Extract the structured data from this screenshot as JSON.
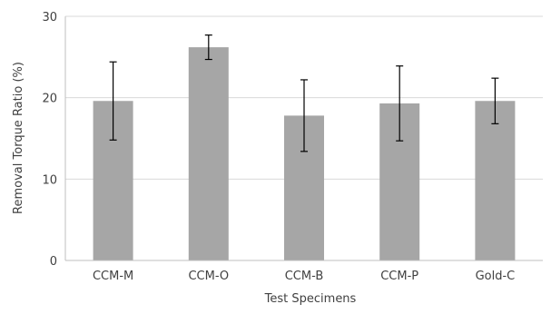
{
  "chart_data": {
    "type": "bar",
    "title": "",
    "xlabel": "Test Specimens",
    "ylabel": "Removal Torque Ratio (%)",
    "ylim": [
      0,
      30
    ],
    "yticks": [
      0,
      10,
      20,
      30
    ],
    "grid": true,
    "categories": [
      "CCM-M",
      "CCM-O",
      "CCM-B",
      "CCM-P",
      "Gold-C"
    ],
    "values": [
      19.6,
      26.2,
      17.8,
      19.3,
      19.6
    ],
    "error_low": [
      14.8,
      24.7,
      13.4,
      14.7,
      16.8
    ],
    "error_high": [
      24.4,
      27.7,
      22.2,
      23.9,
      22.4
    ],
    "bar_color": "#a6a6a6",
    "grid_color": "#d9d9d9",
    "error_color": "#000000"
  }
}
